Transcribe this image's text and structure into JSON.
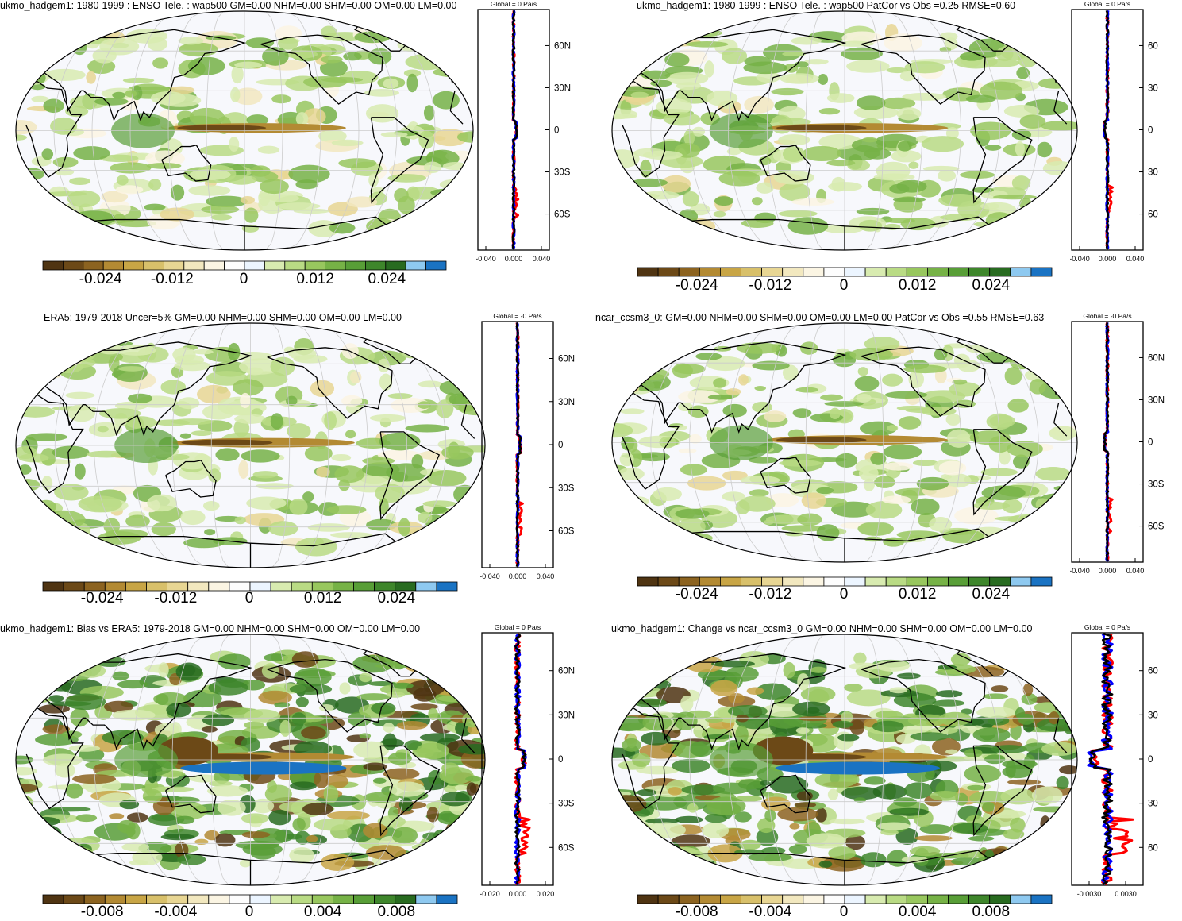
{
  "panels": [
    {
      "id": "top-left",
      "title": "ukmo_hadgem1: 1980-1999 : ENSO Tele. : wap500 GM=0.00 NHM=0.00 SHM=0.00 OM=0.00 LM=0.00",
      "profile_header": "Global = 0 Pa/s",
      "lat_labels": [
        "60N",
        "30N",
        "0",
        "30S",
        "60S"
      ],
      "profile_xticks": [
        "-0.040",
        "0.000",
        "0.040"
      ],
      "colorbar_ticks": [
        "-0.024",
        "-0.012",
        "0",
        "0.012",
        "0.024"
      ],
      "kind": "tele"
    },
    {
      "id": "top-right",
      "title": "ukmo_hadgem1: 1980-1999 : ENSO Tele. : wap500 PatCor vs Obs =0.25 RMSE=0.60",
      "profile_header": "Global = 0 Pa/s",
      "lat_labels": [
        "60",
        "30",
        "0",
        "30",
        "60"
      ],
      "profile_xticks": [
        "-0.040",
        "0.000",
        "0.040"
      ],
      "colorbar_ticks": [
        "-0.024",
        "-0.012",
        "0",
        "0.012",
        "0.024"
      ],
      "kind": "tele"
    },
    {
      "id": "mid-left",
      "title": "ERA5: 1979-2018 Uncer=5% GM=0.00 NHM=0.00 SHM=0.00 OM=0.00 LM=0.00",
      "profile_header": "Global = -0 Pa/s",
      "lat_labels": [
        "60N",
        "30N",
        "0",
        "30S",
        "60S"
      ],
      "profile_xticks": [
        "-0.040",
        "0.000",
        "0.040"
      ],
      "colorbar_ticks": [
        "-0.024",
        "-0.012",
        "0",
        "0.012",
        "0.024"
      ],
      "kind": "obs"
    },
    {
      "id": "mid-right",
      "title": "ncar_ccsm3_0: GM=0.00 NHM=0.00 SHM=0.00 OM=0.00 LM=0.00 PatCor vs Obs =0.55 RMSE=0.63",
      "profile_header": "Global = -0 Pa/s",
      "lat_labels": [
        "60N",
        "30N",
        "0",
        "30S",
        "60S"
      ],
      "profile_xticks": [
        "-0.040",
        "0.000",
        "0.040"
      ],
      "colorbar_ticks": [
        "-0.024",
        "-0.012",
        "0",
        "0.012",
        "0.024"
      ],
      "kind": "tele2"
    },
    {
      "id": "bot-left",
      "title": "ukmo_hadgem1: Bias vs ERA5: 1979-2018 GM=0.00 NHM=0.00 SHM=0.00 OM=0.00 LM=0.00",
      "profile_header": "Global = 0 Pa/s",
      "lat_labels": [
        "60N",
        "30N",
        "0",
        "30S",
        "60S"
      ],
      "profile_xticks": [
        "-0.020",
        "0.000",
        "0.020"
      ],
      "colorbar_ticks": [
        "-0.008",
        "-0.004",
        "0",
        "0.004",
        "0.008"
      ],
      "kind": "diff"
    },
    {
      "id": "bot-right",
      "title": "ukmo_hadgem1: Change vs ncar_ccsm3_0 GM=0.00 NHM=0.00 SHM=0.00 OM=0.00 LM=0.00",
      "profile_header": "Global = 0 Pa/s",
      "lat_labels": [
        "60",
        "30",
        "0",
        "30",
        "60"
      ],
      "profile_xticks": [
        "-0.0030",
        "0.0030"
      ],
      "colorbar_ticks": [
        "-0.008",
        "-0.004",
        "0",
        "0.004",
        "0.008"
      ],
      "kind": "diff"
    }
  ],
  "colors": {
    "palette": [
      "#4f3412",
      "#6c4917",
      "#8c6320",
      "#b38a33",
      "#c8a545",
      "#d8c06a",
      "#e8d693",
      "#f2e8bf",
      "#fbf5e3",
      "#fdfdfd",
      "#ecf5ff",
      "#d8ebb0",
      "#b9db84",
      "#98c75e",
      "#76b246",
      "#589e37",
      "#3e862b",
      "#286b20",
      "#8ec9f0",
      "#1a73c3"
    ],
    "profile_obs": "#ff0000",
    "profile_model": "#0000ff",
    "profile_mean": "#000000",
    "land_outline": "#000000"
  },
  "chart_data": {
    "type": "heatmap",
    "variable": "wap500",
    "units": "Pa/s",
    "projection": "Robinson",
    "panels": 6,
    "colorbar_levels_tele": [
      "-0.024",
      "-0.012",
      "0",
      "0.012",
      "0.024"
    ],
    "colorbar_levels_diff": [
      "-0.008",
      "-0.004",
      "0",
      "0.004",
      "0.008"
    ],
    "zonal_profile_lat_ticks": [
      "60N",
      "30N",
      "0",
      "30S",
      "60S"
    ]
  }
}
